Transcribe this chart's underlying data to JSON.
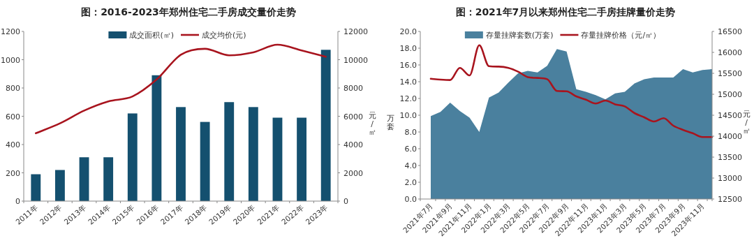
{
  "chart_data": [
    {
      "type": "bar",
      "title": "图：2016-2023年郑州住宅二手房成交量价走势",
      "categories": [
        "2011年",
        "2012年",
        "2013年",
        "2014年",
        "2015年",
        "2016年",
        "2017年",
        "2018年",
        "2019年",
        "2020年",
        "2021年",
        "2022年",
        "2023年"
      ],
      "series": [
        {
          "name": "成交面积(㎡)",
          "type": "bar",
          "color": "#14506f",
          "values": [
            190,
            220,
            310,
            310,
            620,
            890,
            665,
            560,
            700,
            665,
            590,
            590,
            1070
          ]
        },
        {
          "name": "成交均价(元)",
          "type": "line",
          "axis": "y2",
          "color": "#a8141e",
          "values": [
            4800,
            5500,
            6400,
            7050,
            7400,
            8600,
            10350,
            10770,
            10310,
            10520,
            11060,
            10650,
            10210
          ]
        }
      ],
      "ylim": [
        0,
        1200
      ],
      "yticks": [
        0,
        200,
        400,
        600,
        800,
        1000,
        1200
      ],
      "y2lim": [
        0,
        12000
      ],
      "y2ticks": [
        0,
        2000,
        4000,
        6000,
        8000,
        10000,
        12000
      ],
      "y2label": "元/㎡",
      "legend": "top"
    },
    {
      "type": "area",
      "title": "图：2021年7月以来郑州住宅二手房挂牌量价走势",
      "categories": [
        "2021年7月",
        null,
        "2021年9月",
        null,
        "2021年11月",
        null,
        "2022年1月",
        null,
        "2022年3月",
        null,
        "2022年5月",
        null,
        "2022年7月",
        null,
        "2022年9月",
        null,
        "2022年11月",
        null,
        "2023年1月",
        null,
        "2023年3月",
        null,
        "2023年5月",
        null,
        "2023年7月",
        null,
        "2023年9月",
        null,
        "2023年11月",
        null
      ],
      "series": [
        {
          "name": "存量挂牌套数(万套)",
          "type": "area",
          "color": "#4a809e",
          "values": [
            9.9,
            10.4,
            11.5,
            10.5,
            9.7,
            8.0,
            12.1,
            12.7,
            13.9,
            15.0,
            15.3,
            15.1,
            15.9,
            17.9,
            17.6,
            13.1,
            12.8,
            12.4,
            11.9,
            12.6,
            12.8,
            13.8,
            14.3,
            14.5,
            14.5,
            14.5,
            15.5,
            15.1,
            15.4,
            15.5
          ]
        },
        {
          "name": "存量挂牌价格（元/㎡）",
          "type": "line",
          "axis": "y2",
          "color": "#a8141e",
          "values": [
            15370,
            15350,
            15340,
            15630,
            15450,
            16170,
            15670,
            15660,
            15630,
            15540,
            15410,
            15390,
            15360,
            15080,
            15070,
            14950,
            14870,
            14780,
            14850,
            14760,
            14710,
            14550,
            14450,
            14350,
            14430,
            14250,
            14150,
            14070,
            13980,
            13980
          ]
        }
      ],
      "ylim": [
        0,
        20
      ],
      "yticks": [
        {
          "value": 0,
          "label": "0.0"
        },
        {
          "value": 2,
          "label": "2.0"
        },
        {
          "value": 4,
          "label": "4.0"
        },
        {
          "value": 6,
          "label": "6.0"
        },
        {
          "value": 8,
          "label": "8.0"
        },
        {
          "value": 10,
          "label": "10.0"
        },
        {
          "value": 12,
          "label": "12.0"
        },
        {
          "value": 14,
          "label": "14.0"
        },
        {
          "value": 16,
          "label": "16.0"
        },
        {
          "value": 18,
          "label": "18.0"
        },
        {
          "value": 20,
          "label": "20.0"
        }
      ],
      "y2lim": [
        12500,
        16500
      ],
      "y2ticks": [
        12500,
        13000,
        13500,
        14000,
        14500,
        15000,
        15500,
        16000,
        16500
      ],
      "ylabel": "万套",
      "y2label": "元/㎡",
      "legend": "top"
    }
  ]
}
